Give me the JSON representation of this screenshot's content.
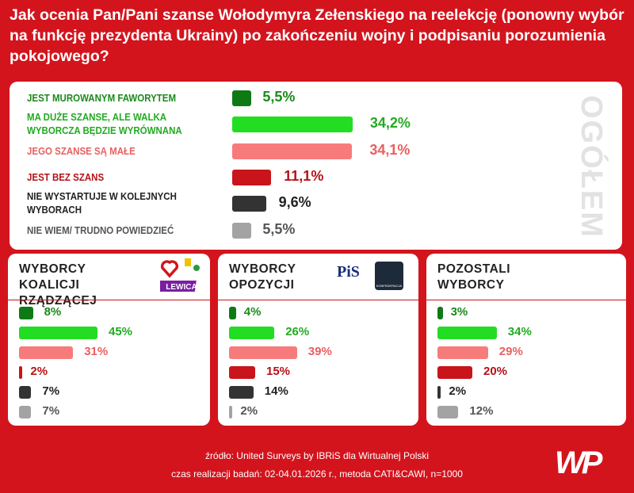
{
  "title": "Jak ocenia Pan/Pani szanse Wołodymyra Zełenskiego na reelekcję (ponowny wybór na funkcję prezydenta Ukrainy) po zakończeniu wojny i podpisaniu porozumienia pokojowego?",
  "colors": {
    "background": "#d3141d",
    "dark_green": "#0e7a16",
    "green": "#22dd22",
    "pink": "#f77b7b",
    "red": "#c8141a",
    "dark": "#333333",
    "gray": "#a3a3a3"
  },
  "chart_data": [
    {
      "type": "bar",
      "orientation": "horizontal",
      "title": "OGÓŁEM",
      "categories": [
        "JEST MUROWANYM FAWORYTEM",
        "MA DUŻE SZANSE, ALE WALKA WYBORCZA BĘDZIE WYRÓWNANA",
        "JEGO SZANSE SĄ MAŁE",
        "JEST BEZ SZANS",
        "NIE WYSTARTUJE W KOLEJNYCH WYBORACH",
        "NIE WIEM/ TRUDNO POWIEDZIEĆ"
      ],
      "values": [
        5.5,
        34.2,
        34.1,
        11.1,
        9.6,
        5.5
      ],
      "labels": [
        "5,5%",
        "34,2%",
        "34,1%",
        "11,1%",
        "9,6%",
        "5,5%"
      ]
    },
    {
      "type": "bar",
      "orientation": "horizontal",
      "title": "WYBORCY KOALICJI RZĄDZĄCEJ",
      "values": [
        8,
        45,
        31,
        2,
        7,
        7
      ],
      "labels": [
        "8%",
        "45%",
        "31%",
        "2%",
        "7%",
        "7%"
      ],
      "logos": [
        "LEWICA"
      ]
    },
    {
      "type": "bar",
      "orientation": "horizontal",
      "title": "WYBORCY OPOZYCJI",
      "values": [
        4,
        26,
        39,
        15,
        14,
        2
      ],
      "labels": [
        "4%",
        "26%",
        "39%",
        "15%",
        "14%",
        "2%"
      ],
      "logos": [
        "PiS",
        "KONFEDERACJA"
      ]
    },
    {
      "type": "bar",
      "orientation": "horizontal",
      "title": "POZOSTALI WYBORCY",
      "values": [
        3,
        34,
        29,
        20,
        2,
        12
      ],
      "labels": [
        "3%",
        "34%",
        "29%",
        "20%",
        "2%",
        "12%"
      ]
    }
  ],
  "series_colors": [
    "#0e7a16",
    "#22dd22",
    "#f77b7b",
    "#c8141a",
    "#333333",
    "#a3a3a3"
  ],
  "label_colors": [
    "#1a8a1a",
    "#22aa22",
    "#e86060",
    "#b51218",
    "#222222",
    "#555555"
  ],
  "footer": {
    "source": "źródło: United Surveys by IBRiS dla Wirtualnej Polski",
    "method": "czas realizacji badań: 02-04.01.2026 r., metoda CATI&CAWI, n=1000",
    "brand": "WP"
  }
}
